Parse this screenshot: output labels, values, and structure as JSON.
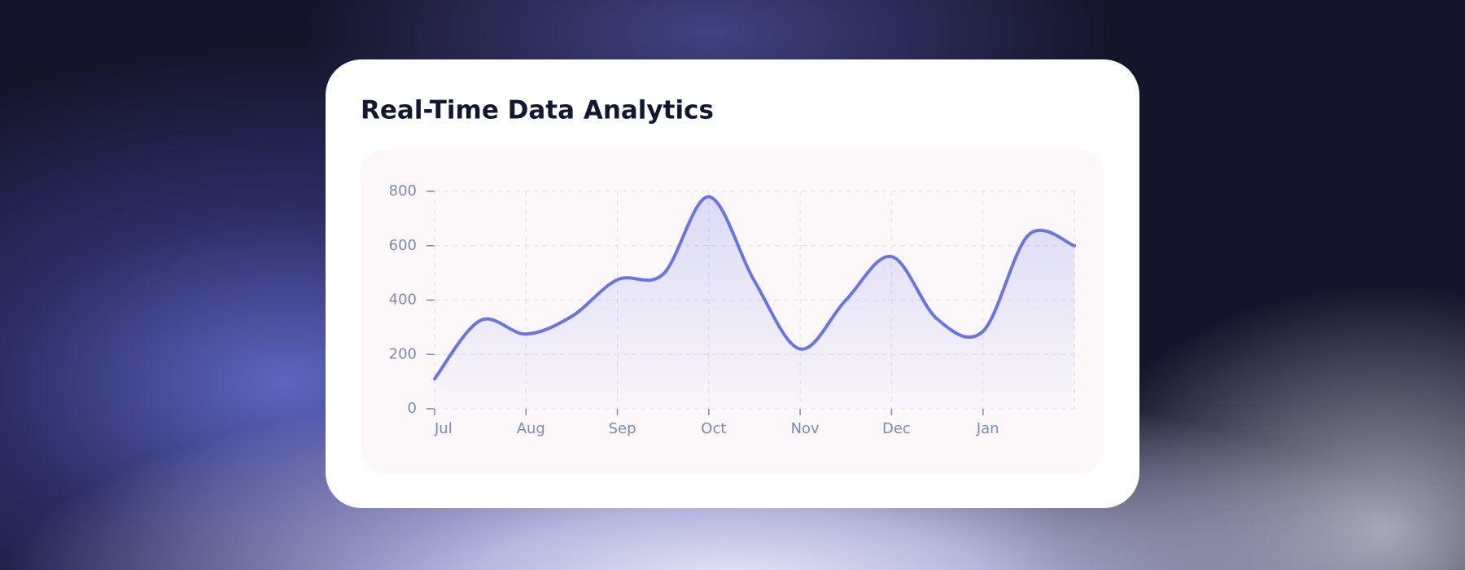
{
  "chart_data": {
    "type": "line",
    "title": "Real-Time Data Analytics",
    "categories": [
      "Jul",
      null,
      "Aug",
      null,
      "Sep",
      null,
      "Oct",
      null,
      "Nov",
      null,
      "Dec",
      null,
      "Jan",
      null,
      null
    ],
    "values": [
      110,
      325,
      275,
      340,
      475,
      495,
      780,
      470,
      220,
      400,
      560,
      330,
      285,
      640,
      600
    ],
    "color": "#6b74e4",
    "ylim": [
      0,
      800
    ],
    "yticks": [
      0,
      200,
      400,
      600,
      800
    ],
    "grid": true
  }
}
